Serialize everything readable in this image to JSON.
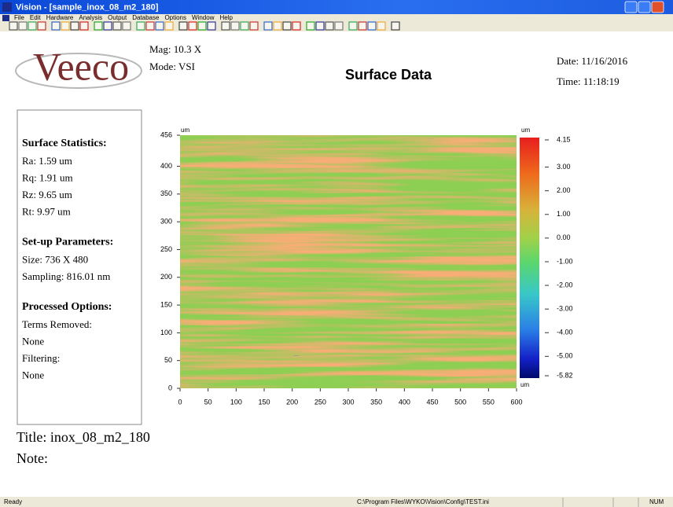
{
  "window": {
    "title": "Vision - [sample_inox_08_m2_180]",
    "menu": [
      "File",
      "Edit",
      "Hardware",
      "Analysis",
      "Output",
      "Database",
      "Options",
      "Window",
      "Help"
    ]
  },
  "header": {
    "logo": "Veeco",
    "mag": "Mag: 10.3 X",
    "mode": "Mode: VSI",
    "title": "Surface Data",
    "date": "Date: 11/16/2016",
    "time": "Time: 11:18:19"
  },
  "panel": {
    "sections": [
      {
        "heading": "Surface Statistics:",
        "lines": [
          "Ra: 1.59 um",
          "Rq: 1.91 um",
          "Rz: 9.65 um",
          "Rt: 9.97 um"
        ]
      },
      {
        "heading": "Set-up Parameters:",
        "lines": [
          "Size: 736 X 480",
          "Sampling: 816.01 nm"
        ]
      },
      {
        "heading": "Processed Options:",
        "lines": [
          "Terms Removed:",
          "None",
          "Filtering:",
          "None"
        ]
      }
    ]
  },
  "chart_data": {
    "type": "heatmap",
    "x_unit": "um",
    "y_unit": "um",
    "xlim": [
      0,
      600
    ],
    "xticks": [
      0,
      50,
      100,
      150,
      200,
      250,
      300,
      350,
      400,
      450,
      500,
      550,
      600
    ],
    "ylim": [
      0,
      456
    ],
    "yticks": [
      0,
      50,
      100,
      150,
      200,
      250,
      300,
      350,
      400,
      456
    ],
    "colorbar": {
      "unit": "um",
      "lim": [
        -5.82,
        4.15
      ],
      "ticks": [
        4.15,
        {
          "value": 3,
          "label": "3.00"
        },
        {
          "value": 2,
          "label": "2.00"
        },
        {
          "value": 1,
          "label": "1.00"
        },
        {
          "value": 0,
          "label": "0.00"
        },
        {
          "value": -1,
          "label": "-1.00"
        },
        {
          "value": -2,
          "label": "-2.00"
        },
        {
          "value": -3,
          "label": "-3.00"
        },
        {
          "value": -4,
          "label": "-4.00"
        },
        {
          "value": -5,
          "label": "-5.00"
        },
        -5.82
      ]
    }
  },
  "footer": {
    "title": "Title: inox_08_m2_180",
    "note": "Note:"
  },
  "status": {
    "left": "Ready",
    "path": "C:\\Program Files\\WYKO\\Vision\\Config\\TEST.ini",
    "num": "NUM"
  }
}
